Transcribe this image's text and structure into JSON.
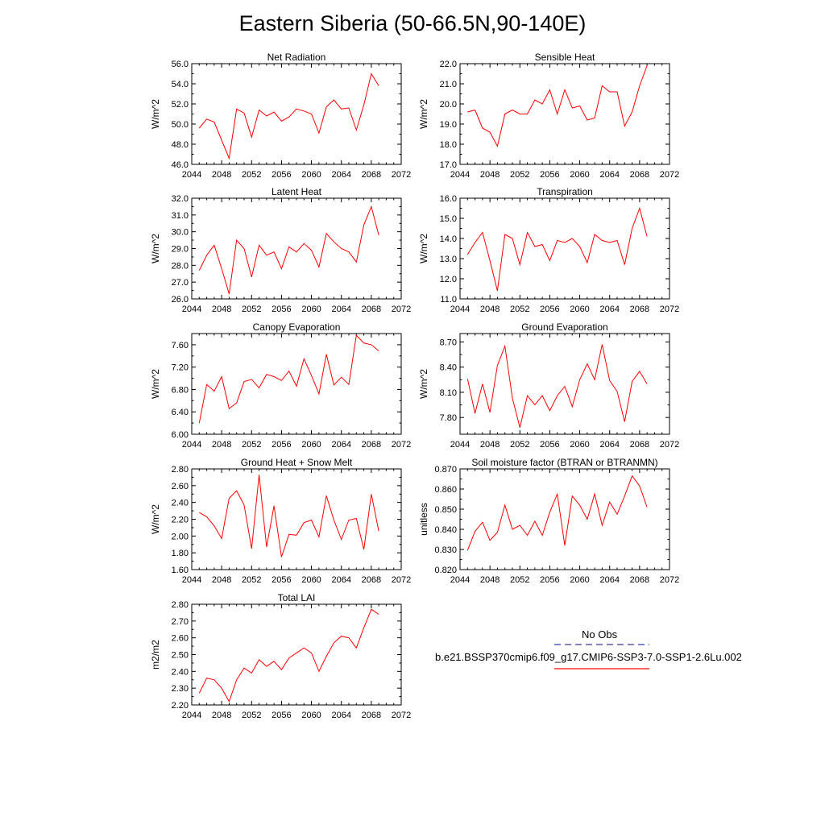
{
  "page_title": "Eastern Siberia (50-66.5N,90-140E)",
  "legend": {
    "entries": [
      {
        "label": "No Obs",
        "color": "#3a3aa0",
        "dash": true
      },
      {
        "label": "b.e21.BSSP370cmip6.f09_g17.CMIP6-SSP3-7.0-SSP1-2.6Lu.002",
        "color": "#ff0000",
        "dash": false
      }
    ]
  },
  "line_color": "#ff0000",
  "chart_data": [
    {
      "type": "line",
      "title": "Net Radiation",
      "ylabel": "W/m^2",
      "xlim": [
        2044,
        2072
      ],
      "xticks": [
        2044,
        2048,
        2052,
        2056,
        2060,
        2064,
        2068,
        2072
      ],
      "ylim": [
        46.0,
        56.0
      ],
      "yticks": [
        46.0,
        48.0,
        50.0,
        52.0,
        54.0,
        56.0
      ],
      "ydec": 1,
      "x": [
        2045,
        2046,
        2047,
        2048,
        2049,
        2050,
        2051,
        2052,
        2053,
        2054,
        2055,
        2056,
        2057,
        2058,
        2059,
        2060,
        2061,
        2062,
        2063,
        2064,
        2065,
        2066,
        2067,
        2068,
        2069
      ],
      "values": [
        49.6,
        50.5,
        50.2,
        48.4,
        46.6,
        51.5,
        51.1,
        48.7,
        51.4,
        50.8,
        51.2,
        50.3,
        50.7,
        51.5,
        51.3,
        51.0,
        49.1,
        51.7,
        52.4,
        51.5,
        51.6,
        49.4,
        51.9,
        55.0,
        53.8
      ]
    },
    {
      "type": "line",
      "title": "Sensible Heat",
      "ylabel": "W/m^2",
      "xlim": [
        2044,
        2072
      ],
      "xticks": [
        2044,
        2048,
        2052,
        2056,
        2060,
        2064,
        2068,
        2072
      ],
      "ylim": [
        17.0,
        22.0
      ],
      "yticks": [
        17.0,
        18.0,
        19.0,
        20.0,
        21.0,
        22.0
      ],
      "ydec": 1,
      "x": [
        2045,
        2046,
        2047,
        2048,
        2049,
        2050,
        2051,
        2052,
        2053,
        2054,
        2055,
        2056,
        2057,
        2058,
        2059,
        2060,
        2061,
        2062,
        2063,
        2064,
        2065,
        2066,
        2067,
        2068,
        2069
      ],
      "values": [
        19.6,
        19.7,
        18.8,
        18.6,
        17.9,
        19.5,
        19.7,
        19.5,
        19.5,
        20.2,
        20.0,
        20.7,
        19.5,
        20.7,
        19.8,
        19.9,
        19.2,
        19.3,
        20.9,
        20.6,
        20.6,
        18.9,
        19.6,
        20.9,
        21.9
      ]
    },
    {
      "type": "line",
      "title": "Latent Heat",
      "ylabel": "W/m^2",
      "xlim": [
        2044,
        2072
      ],
      "xticks": [
        2044,
        2048,
        2052,
        2056,
        2060,
        2064,
        2068,
        2072
      ],
      "ylim": [
        26.0,
        32.0
      ],
      "yticks": [
        26.0,
        27.0,
        28.0,
        29.0,
        30.0,
        31.0,
        32.0
      ],
      "ydec": 1,
      "x": [
        2045,
        2046,
        2047,
        2048,
        2049,
        2050,
        2051,
        2052,
        2053,
        2054,
        2055,
        2056,
        2057,
        2058,
        2059,
        2060,
        2061,
        2062,
        2063,
        2064,
        2065,
        2066,
        2067,
        2068,
        2069
      ],
      "values": [
        27.7,
        28.6,
        29.2,
        27.8,
        26.3,
        29.5,
        29.0,
        27.3,
        29.2,
        28.6,
        28.8,
        27.8,
        29.1,
        28.8,
        29.3,
        28.9,
        27.9,
        29.9,
        29.4,
        29.0,
        28.8,
        28.2,
        30.4,
        31.5,
        29.8
      ]
    },
    {
      "type": "line",
      "title": "Transpiration",
      "ylabel": "W/m^2",
      "xlim": [
        2044,
        2072
      ],
      "xticks": [
        2044,
        2048,
        2052,
        2056,
        2060,
        2064,
        2068,
        2072
      ],
      "ylim": [
        11.0,
        16.0
      ],
      "yticks": [
        11.0,
        12.0,
        13.0,
        14.0,
        15.0,
        16.0
      ],
      "ydec": 1,
      "x": [
        2045,
        2046,
        2047,
        2048,
        2049,
        2050,
        2051,
        2052,
        2053,
        2054,
        2055,
        2056,
        2057,
        2058,
        2059,
        2060,
        2061,
        2062,
        2063,
        2064,
        2065,
        2066,
        2067,
        2068,
        2069
      ],
      "values": [
        13.2,
        13.8,
        14.3,
        12.9,
        11.4,
        14.2,
        14.0,
        12.7,
        14.3,
        13.6,
        13.7,
        12.9,
        13.9,
        13.8,
        14.0,
        13.6,
        12.8,
        14.2,
        13.9,
        13.8,
        13.9,
        12.7,
        14.5,
        15.5,
        14.1
      ]
    },
    {
      "type": "line",
      "title": "Canopy Evaporation",
      "ylabel": "W/m^2",
      "xlim": [
        2044,
        2072
      ],
      "xticks": [
        2044,
        2048,
        2052,
        2056,
        2060,
        2064,
        2068,
        2072
      ],
      "ylim": [
        6.0,
        7.8
      ],
      "yticks": [
        6.0,
        6.4,
        6.8,
        7.2,
        7.6
      ],
      "ydec": 2,
      "x": [
        2045,
        2046,
        2047,
        2048,
        2049,
        2050,
        2051,
        2052,
        2053,
        2054,
        2055,
        2056,
        2057,
        2058,
        2059,
        2060,
        2061,
        2062,
        2063,
        2064,
        2065,
        2066,
        2067,
        2068,
        2069
      ],
      "values": [
        6.2,
        6.89,
        6.77,
        7.03,
        6.46,
        6.56,
        6.94,
        6.98,
        6.83,
        7.07,
        7.03,
        6.96,
        7.13,
        6.86,
        7.35,
        7.05,
        6.72,
        7.43,
        6.88,
        7.02,
        6.89,
        7.77,
        7.63,
        7.6,
        7.49
      ]
    },
    {
      "type": "line",
      "title": "Ground Evaporation",
      "ylabel": "W/m^2",
      "xlim": [
        2044,
        2072
      ],
      "xticks": [
        2044,
        2048,
        2052,
        2056,
        2060,
        2064,
        2068,
        2072
      ],
      "ylim": [
        7.6,
        8.8
      ],
      "yticks": [
        7.8,
        8.1,
        8.4,
        8.7
      ],
      "ydec": 2,
      "x": [
        2045,
        2046,
        2047,
        2048,
        2049,
        2050,
        2051,
        2052,
        2053,
        2054,
        2055,
        2056,
        2057,
        2058,
        2059,
        2060,
        2061,
        2062,
        2063,
        2064,
        2065,
        2066,
        2067,
        2068,
        2069
      ],
      "values": [
        8.26,
        7.85,
        8.2,
        7.86,
        8.42,
        8.65,
        8.03,
        7.68,
        8.06,
        7.95,
        8.06,
        7.88,
        8.06,
        8.17,
        7.93,
        8.25,
        8.44,
        8.25,
        8.67,
        8.24,
        8.11,
        7.75,
        8.23,
        8.35,
        8.2
      ]
    },
    {
      "type": "line",
      "title": "Ground Heat + Snow Melt",
      "ylabel": "W/m^2",
      "xlim": [
        2044,
        2072
      ],
      "xticks": [
        2044,
        2048,
        2052,
        2056,
        2060,
        2064,
        2068,
        2072
      ],
      "ylim": [
        1.6,
        2.8
      ],
      "yticks": [
        1.6,
        1.8,
        2.0,
        2.2,
        2.4,
        2.6,
        2.8
      ],
      "ydec": 2,
      "x": [
        2045,
        2046,
        2047,
        2048,
        2049,
        2050,
        2051,
        2052,
        2053,
        2054,
        2055,
        2056,
        2057,
        2058,
        2059,
        2060,
        2061,
        2062,
        2063,
        2064,
        2065,
        2066,
        2067,
        2068,
        2069
      ],
      "values": [
        2.28,
        2.23,
        2.12,
        1.97,
        2.45,
        2.54,
        2.37,
        1.85,
        2.73,
        1.87,
        2.36,
        1.75,
        2.02,
        2.01,
        2.16,
        2.19,
        1.99,
        2.48,
        2.19,
        1.96,
        2.19,
        2.21,
        1.84,
        2.5,
        2.06
      ]
    },
    {
      "type": "line",
      "title": "Soil moisture factor (BTRAN or BTRANMN)",
      "ylabel": "unitless",
      "xlim": [
        2044,
        2072
      ],
      "xticks": [
        2044,
        2048,
        2052,
        2056,
        2060,
        2064,
        2068,
        2072
      ],
      "ylim": [
        0.82,
        0.87
      ],
      "yticks": [
        0.82,
        0.83,
        0.84,
        0.85,
        0.86,
        0.87
      ],
      "ydec": 3,
      "x": [
        2045,
        2046,
        2047,
        2048,
        2049,
        2050,
        2051,
        2052,
        2053,
        2054,
        2055,
        2056,
        2057,
        2058,
        2059,
        2060,
        2061,
        2062,
        2063,
        2064,
        2065,
        2066,
        2067,
        2068,
        2069
      ],
      "values": [
        0.8295,
        0.839,
        0.8435,
        0.8345,
        0.8385,
        0.852,
        0.84,
        0.842,
        0.837,
        0.844,
        0.837,
        0.8485,
        0.8575,
        0.832,
        0.8565,
        0.852,
        0.845,
        0.8575,
        0.842,
        0.8535,
        0.8475,
        0.8565,
        0.8665,
        0.8615,
        0.851
      ]
    },
    {
      "type": "line",
      "title": "Total LAI",
      "ylabel": "m2/m2",
      "xlim": [
        2044,
        2072
      ],
      "xticks": [
        2044,
        2048,
        2052,
        2056,
        2060,
        2064,
        2068,
        2072
      ],
      "ylim": [
        2.2,
        2.8
      ],
      "yticks": [
        2.2,
        2.3,
        2.4,
        2.5,
        2.6,
        2.7,
        2.8
      ],
      "ydec": 2,
      "x": [
        2045,
        2046,
        2047,
        2048,
        2049,
        2050,
        2051,
        2052,
        2053,
        2054,
        2055,
        2056,
        2057,
        2058,
        2059,
        2060,
        2061,
        2062,
        2063,
        2064,
        2065,
        2066,
        2067,
        2068,
        2069
      ],
      "values": [
        2.27,
        2.36,
        2.35,
        2.3,
        2.22,
        2.35,
        2.42,
        2.39,
        2.47,
        2.43,
        2.46,
        2.41,
        2.48,
        2.51,
        2.54,
        2.51,
        2.4,
        2.49,
        2.57,
        2.61,
        2.6,
        2.54,
        2.66,
        2.77,
        2.74
      ]
    }
  ]
}
